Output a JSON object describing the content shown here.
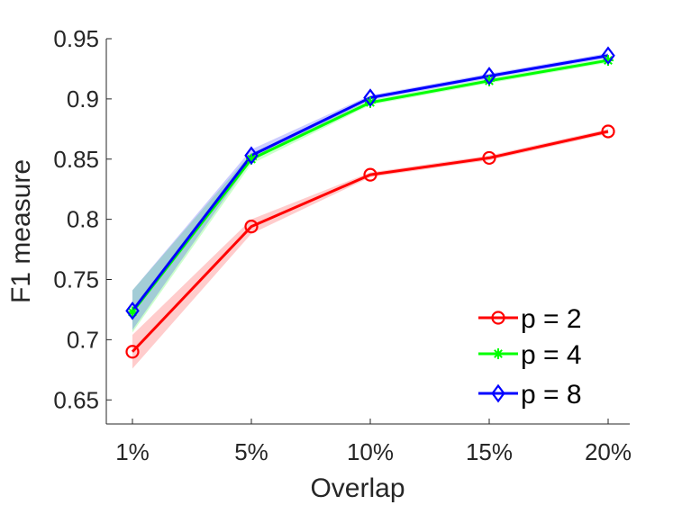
{
  "chart_data": {
    "type": "line",
    "xlabel": "Overlap",
    "ylabel": "F1 measure",
    "categories": [
      "1%",
      "5%",
      "10%",
      "15%",
      "20%"
    ],
    "ylim": [
      0.63,
      0.95
    ],
    "yticks": [
      0.65,
      0.7,
      0.75,
      0.8,
      0.85,
      0.9,
      0.95
    ],
    "ytick_labels": [
      "0.65",
      "0.7",
      "0.75",
      "0.8",
      "0.85",
      "0.9",
      "0.95"
    ],
    "legend_position": "bottom-right",
    "series": [
      {
        "name": "p = 2",
        "color": "#ff0000",
        "marker": "circle",
        "values": [
          0.69,
          0.794,
          0.837,
          0.851,
          0.873
        ],
        "lower": [
          0.676,
          0.788,
          0.835,
          0.849,
          0.871
        ],
        "upper": [
          0.704,
          0.8,
          0.839,
          0.853,
          0.875
        ]
      },
      {
        "name": "p = 4",
        "color": "#00ff00",
        "marker": "asterisk",
        "values": [
          0.723,
          0.85,
          0.897,
          0.915,
          0.932
        ],
        "lower": [
          0.706,
          0.846,
          0.895,
          0.913,
          0.93
        ],
        "upper": [
          0.741,
          0.855,
          0.899,
          0.917,
          0.934
        ]
      },
      {
        "name": "p = 8",
        "color": "#0000ff",
        "marker": "diamond",
        "values": [
          0.724,
          0.853,
          0.901,
          0.919,
          0.936
        ],
        "lower": [
          0.708,
          0.849,
          0.899,
          0.917,
          0.934
        ],
        "upper": [
          0.741,
          0.858,
          0.903,
          0.921,
          0.938
        ]
      }
    ]
  }
}
